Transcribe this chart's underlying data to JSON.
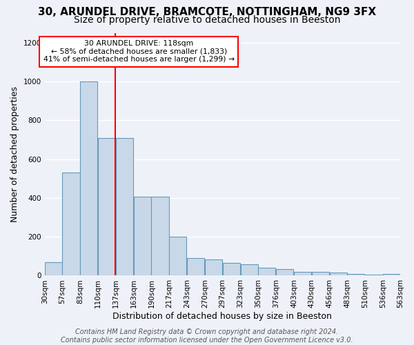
{
  "title1": "30, ARUNDEL DRIVE, BRAMCOTE, NOTTINGHAM, NG9 3FX",
  "title2": "Size of property relative to detached houses in Beeston",
  "xlabel": "Distribution of detached houses by size in Beeston",
  "ylabel": "Number of detached properties",
  "bar_values": [
    70,
    530,
    1000,
    710,
    710,
    405,
    405,
    200,
    90,
    85,
    65,
    60,
    40,
    35,
    20,
    20,
    15,
    10,
    5,
    10
  ],
  "bar_labels": [
    "30sqm",
    "57sqm",
    "83sqm",
    "110sqm",
    "137sqm",
    "163sqm",
    "190sqm",
    "217sqm",
    "243sqm",
    "270sqm",
    "297sqm",
    "323sqm",
    "350sqm",
    "376sqm",
    "403sqm",
    "430sqm",
    "456sqm",
    "483sqm",
    "510sqm",
    "536sqm",
    "563sqm"
  ],
  "bar_color": "#c8d8e8",
  "bar_edge_color": "#6699bb",
  "bar_linewidth": 0.8,
  "annotation_text": "30 ARUNDEL DRIVE: 118sqm\n← 58% of detached houses are smaller (1,833)\n41% of semi-detached houses are larger (1,299) →",
  "annotation_box_color": "white",
  "annotation_box_edge": "red",
  "redline_bar_index": 3,
  "bg_color": "#eef2f8",
  "grid_color": "white",
  "ylim": [
    0,
    1250
  ],
  "yticks": [
    0,
    200,
    400,
    600,
    800,
    1000,
    1200
  ],
  "footer": "Contains HM Land Registry data © Crown copyright and database right 2024.\nContains public sector information licensed under the Open Government Licence v3.0.",
  "title1_fontsize": 11,
  "title2_fontsize": 10,
  "xlabel_fontsize": 9,
  "ylabel_fontsize": 9,
  "tick_fontsize": 7.5,
  "footer_fontsize": 7
}
